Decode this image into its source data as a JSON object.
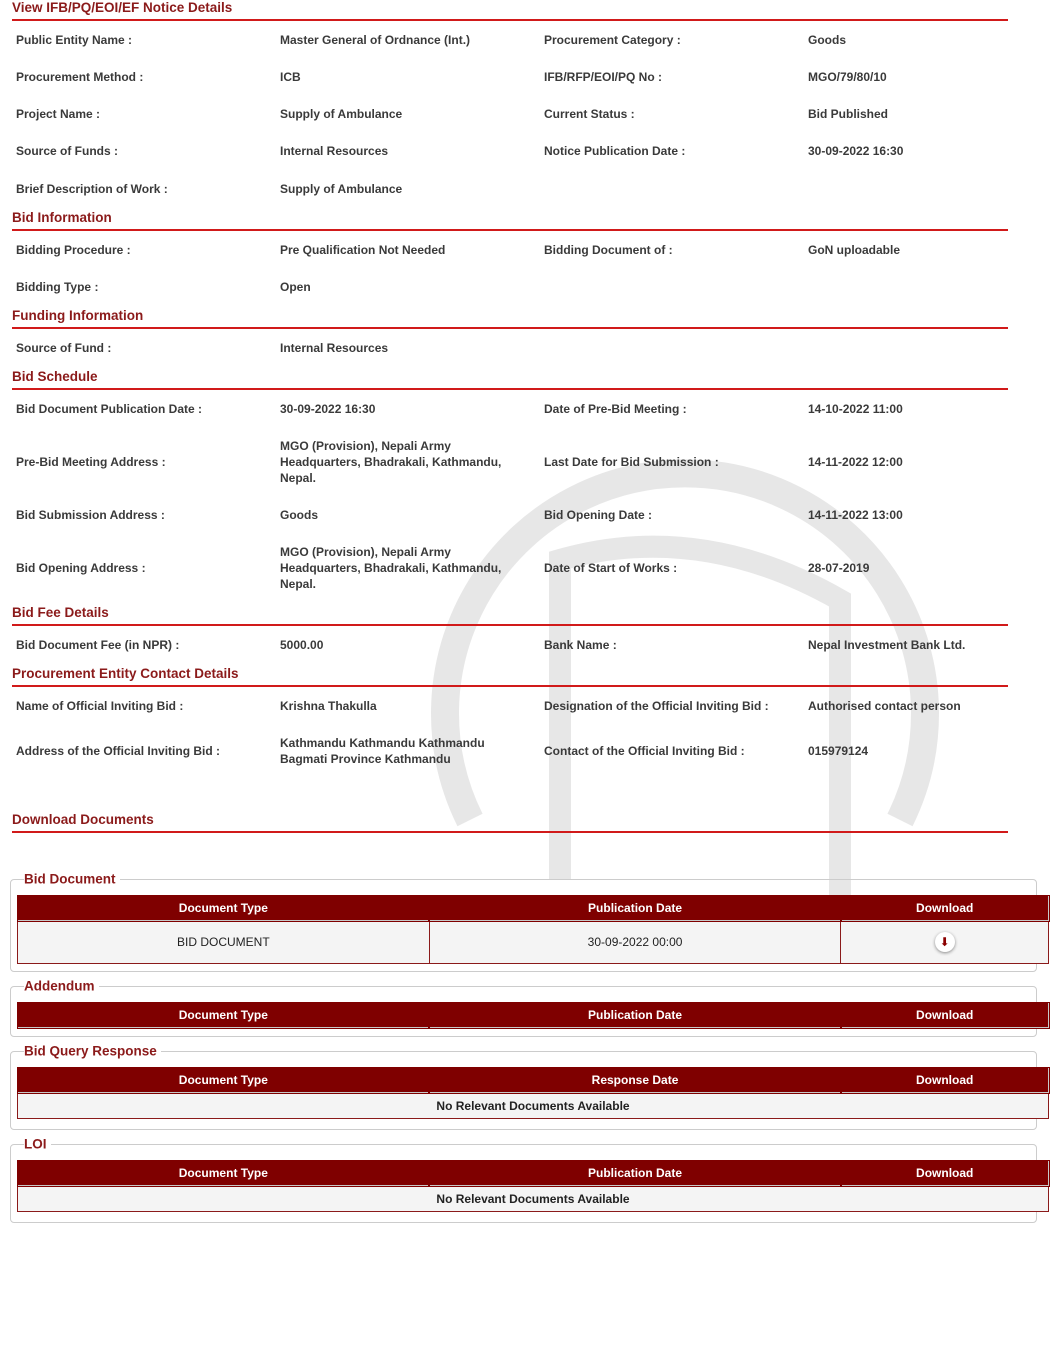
{
  "sections": {
    "notice": {
      "title": "View IFB/PQ/EOI/EF Notice Details",
      "rows": [
        [
          "Public Entity Name :",
          "Master General of Ordnance (Int.)",
          "Procurement Category :",
          "Goods"
        ],
        [
          "Procurement Method :",
          "ICB",
          "IFB/RFP/EOI/PQ No :",
          "MGO/79/80/10"
        ],
        [
          "Project Name :",
          "Supply of Ambulance",
          "Current Status :",
          "Bid Published"
        ],
        [
          "Source of Funds :",
          "Internal Resources",
          "Notice Publication Date :",
          "30-09-2022 16:30"
        ],
        [
          "Brief Description of Work :",
          "Supply of Ambulance",
          "",
          ""
        ]
      ]
    },
    "bid_info": {
      "title": "Bid Information",
      "rows": [
        [
          "Bidding Procedure :",
          "Pre Qualification Not Needed",
          "Bidding Document of :",
          "GoN uploadable"
        ],
        [
          "Bidding Type :",
          "Open",
          "",
          ""
        ]
      ]
    },
    "funding": {
      "title": "Funding Information",
      "rows": [
        [
          "Source of Fund :",
          "Internal Resources",
          "",
          ""
        ]
      ]
    },
    "schedule": {
      "title": "Bid Schedule",
      "rows": [
        [
          "Bid Document Publication Date :",
          "30-09-2022 16:30",
          "Date of Pre-Bid Meeting :",
          "14-10-2022 11:00"
        ],
        [
          "Pre-Bid Meeting Address :",
          "MGO (Provision), Nepali Army Headquarters, Bhadrakali, Kathmandu, Nepal.",
          "Last Date for Bid Submission :",
          "14-11-2022 12:00"
        ],
        [
          "Bid Submission Address :",
          "Goods",
          "Bid Opening Date :",
          "14-11-2022 13:00"
        ],
        [
          "Bid Opening Address :",
          "MGO (Provision), Nepali Army Headquarters, Bhadrakali, Kathmandu, Nepal.",
          "Date of Start of Works :",
          "28-07-2019"
        ]
      ]
    },
    "fee": {
      "title": "Bid Fee Details",
      "rows": [
        [
          "Bid Document Fee (in NPR) :",
          "5000.00",
          "Bank Name :",
          "Nepal Investment Bank Ltd."
        ]
      ]
    },
    "contact": {
      "title": "Procurement Entity Contact Details",
      "rows": [
        [
          "Name of Official Inviting Bid :",
          "Krishna Thakulla",
          "Designation of the Official Inviting Bid :",
          "Authorised contact person"
        ],
        [
          "Address of the Official Inviting Bid :",
          "Kathmandu Kathmandu Kathmandu Bagmati Province Kathmandu",
          "Contact of the Official Inviting Bid :",
          "015979124"
        ]
      ]
    },
    "downloads": {
      "title": "Download Documents"
    }
  },
  "doc_groups": [
    {
      "legend": "Bid Document",
      "headers": [
        "Document Type",
        "Publication Date",
        "Download"
      ],
      "rows": [
        [
          "BID DOCUMENT",
          "30-09-2022 00:00"
        ]
      ]
    },
    {
      "legend": "Addendum",
      "headers": [
        "Document Type",
        "Publication Date",
        "Download"
      ],
      "rows": []
    },
    {
      "legend": "Bid Query Response",
      "headers": [
        "Document Type",
        "Response Date",
        "Download"
      ],
      "empty": "No Relevant Documents Available"
    },
    {
      "legend": "LOI",
      "headers": [
        "Document Type",
        "Publication Date",
        "Download"
      ],
      "empty": "No Relevant Documents Available"
    }
  ],
  "icons": {
    "download": "download-arrow-icon"
  },
  "colors": {
    "header": "#8b1a1a",
    "rule": "#d11a1a",
    "table_header": "#7f0000"
  }
}
